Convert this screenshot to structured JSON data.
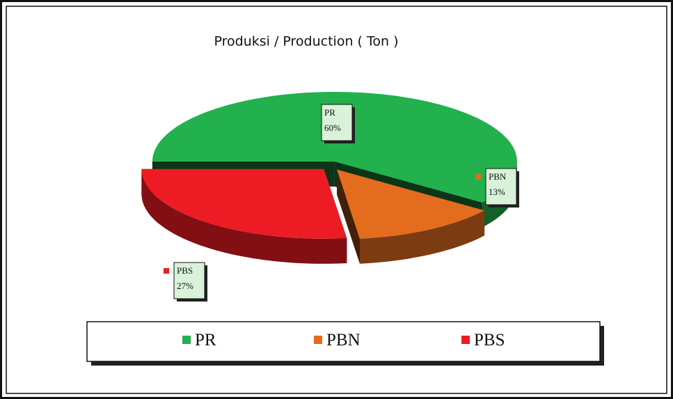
{
  "chart_data": {
    "type": "pie",
    "title": "Produksi / Production ( Ton )",
    "categories": [
      "PR",
      "PBN",
      "PBS"
    ],
    "values": [
      60,
      13,
      27
    ],
    "value_labels": [
      "60%",
      "13%",
      "27%"
    ],
    "colors": [
      "#22b14c",
      "#e36c1f",
      "#ed1c24"
    ],
    "legend": "bottom"
  }
}
